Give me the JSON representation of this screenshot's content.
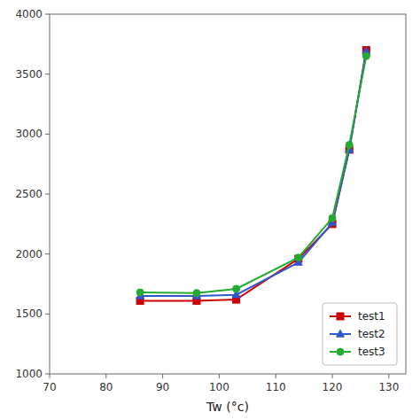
{
  "chart_data": {
    "type": "line",
    "xlabel": "Tw (°c)",
    "x": [
      86,
      96,
      103,
      114,
      120,
      123,
      126
    ],
    "series": [
      {
        "name": "test1",
        "color": "#cc0000",
        "marker": "square",
        "values": [
          1610,
          1610,
          1620,
          1960,
          2250,
          2870,
          3700
        ]
      },
      {
        "name": "test2",
        "color": "#3355cc",
        "marker": "triangle",
        "values": [
          1650,
          1650,
          1660,
          1930,
          2260,
          2870,
          3690
        ]
      },
      {
        "name": "test3",
        "color": "#22aa33",
        "marker": "circle",
        "values": [
          1680,
          1675,
          1710,
          1970,
          2300,
          2910,
          3650
        ]
      }
    ],
    "xlim": [
      70,
      133
    ],
    "ylim": [
      1000,
      4000
    ],
    "xticks": [
      70,
      80,
      90,
      100,
      110,
      120,
      130
    ],
    "yticks": [
      1000,
      1500,
      2000,
      2500,
      3000,
      3500,
      4000
    ],
    "grid": false,
    "legend": "lower right"
  }
}
